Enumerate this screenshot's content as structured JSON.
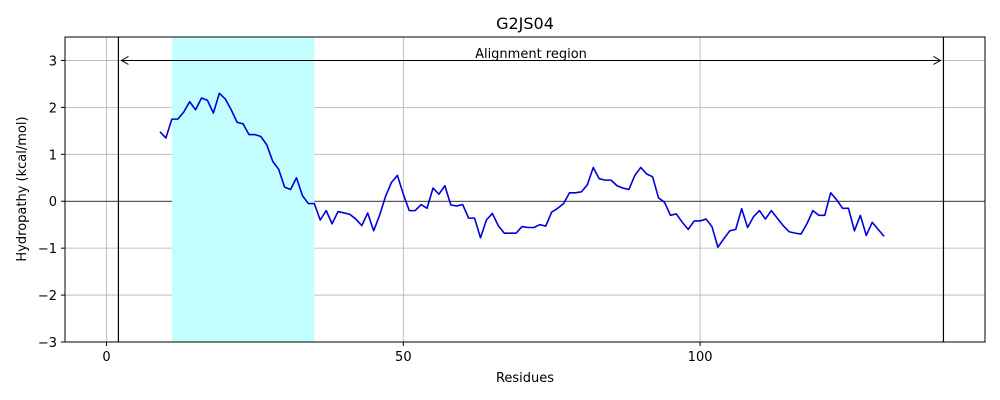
{
  "chart_data": {
    "type": "line",
    "title": "G2JS04",
    "xlabel": "Residues",
    "ylabel": "Hydropathy (kcal/mol)",
    "xlim": [
      -7,
      148
    ],
    "ylim": [
      -3,
      3.5
    ],
    "xticks": [
      0,
      50,
      100
    ],
    "yticks": [
      -3,
      -2,
      -1,
      0,
      1,
      2,
      3
    ],
    "grid": true,
    "highlight_region": {
      "x_start": 11,
      "x_end": 35,
      "color": "#c4ffff"
    },
    "alignment_region": {
      "label": "Alignment region",
      "x_start": 2,
      "x_end": 141,
      "y": 3.0
    },
    "zero_line": 0,
    "series": [
      {
        "color": "#0000dd",
        "x": [
          9,
          10,
          11,
          12,
          13,
          14,
          15,
          16,
          17,
          18,
          19,
          20,
          21,
          22,
          23,
          24,
          25,
          26,
          27,
          28,
          29,
          30,
          31,
          32,
          33,
          34,
          35,
          36,
          37,
          38,
          39,
          40,
          41,
          42,
          43,
          44,
          45,
          46,
          47,
          48,
          49,
          50,
          51,
          52,
          53,
          54,
          55,
          56,
          57,
          58,
          59,
          60,
          61,
          62,
          63,
          64,
          65,
          66,
          67,
          68,
          69,
          70,
          71,
          72,
          73,
          74,
          75,
          76,
          77,
          78,
          79,
          80,
          81,
          82,
          83,
          84,
          85,
          86,
          87,
          88,
          89,
          90,
          91,
          92,
          93,
          94,
          95,
          96,
          97,
          98,
          99,
          100,
          101,
          102,
          103,
          104,
          105,
          106,
          107,
          108,
          109,
          110,
          111,
          112,
          113,
          114,
          115,
          116,
          117,
          118,
          119,
          120,
          121,
          122,
          123,
          124,
          125,
          126,
          127,
          128,
          129,
          130,
          131
        ],
        "y": [
          1.48,
          1.35,
          1.75,
          1.75,
          1.9,
          2.12,
          1.95,
          2.2,
          2.15,
          1.88,
          2.3,
          2.18,
          1.95,
          1.68,
          1.65,
          1.42,
          1.42,
          1.38,
          1.2,
          0.85,
          0.68,
          0.3,
          0.25,
          0.5,
          0.12,
          -0.05,
          -0.05,
          -0.4,
          -0.2,
          -0.48,
          -0.22,
          -0.25,
          -0.28,
          -0.38,
          -0.52,
          -0.25,
          -0.63,
          -0.3,
          0.1,
          0.4,
          0.55,
          0.15,
          -0.2,
          -0.2,
          -0.07,
          -0.15,
          0.28,
          0.15,
          0.33,
          -0.08,
          -0.1,
          -0.07,
          -0.36,
          -0.36,
          -0.78,
          -0.4,
          -0.26,
          -0.52,
          -0.68,
          -0.68,
          -0.68,
          -0.54,
          -0.56,
          -0.56,
          -0.5,
          -0.53,
          -0.23,
          -0.15,
          -0.05,
          0.18,
          0.18,
          0.2,
          0.35,
          0.72,
          0.48,
          0.45,
          0.45,
          0.33,
          0.28,
          0.25,
          0.55,
          0.72,
          0.58,
          0.52,
          0.07,
          -0.02,
          -0.3,
          -0.27,
          -0.45,
          -0.6,
          -0.42,
          -0.42,
          -0.38,
          -0.54,
          -0.98,
          -0.8,
          -0.63,
          -0.6,
          -0.16,
          -0.56,
          -0.33,
          -0.2,
          -0.38,
          -0.2,
          -0.36,
          -0.52,
          -0.65,
          -0.68,
          -0.7,
          -0.48,
          -0.2,
          -0.3,
          -0.3,
          0.18,
          0.03,
          -0.15,
          -0.15,
          -0.63,
          -0.3,
          -0.73,
          -0.45,
          -0.6,
          -0.75
        ]
      }
    ]
  }
}
